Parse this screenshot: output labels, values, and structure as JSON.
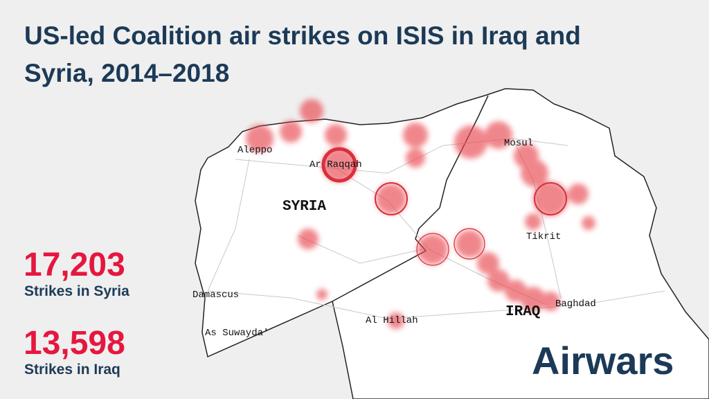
{
  "header": {
    "title_line1": "US-led Coalition air strikes on ISIS in Iraq and",
    "title_line2": "Syria, 2014–2018"
  },
  "stats": [
    {
      "number": "17,203",
      "label": "Strikes in Syria"
    },
    {
      "number": "13,598",
      "label": "Strikes in Iraq"
    }
  ],
  "map": {
    "places": [
      "Aleppo",
      "Ar Raqqah",
      "Mosul",
      "Tikrit",
      "Damascus",
      "As Suwayda'",
      "Al Hillah",
      "Baghdad"
    ],
    "countries": [
      "SYRIA",
      "IRAQ"
    ]
  },
  "brand": "Airwars"
}
